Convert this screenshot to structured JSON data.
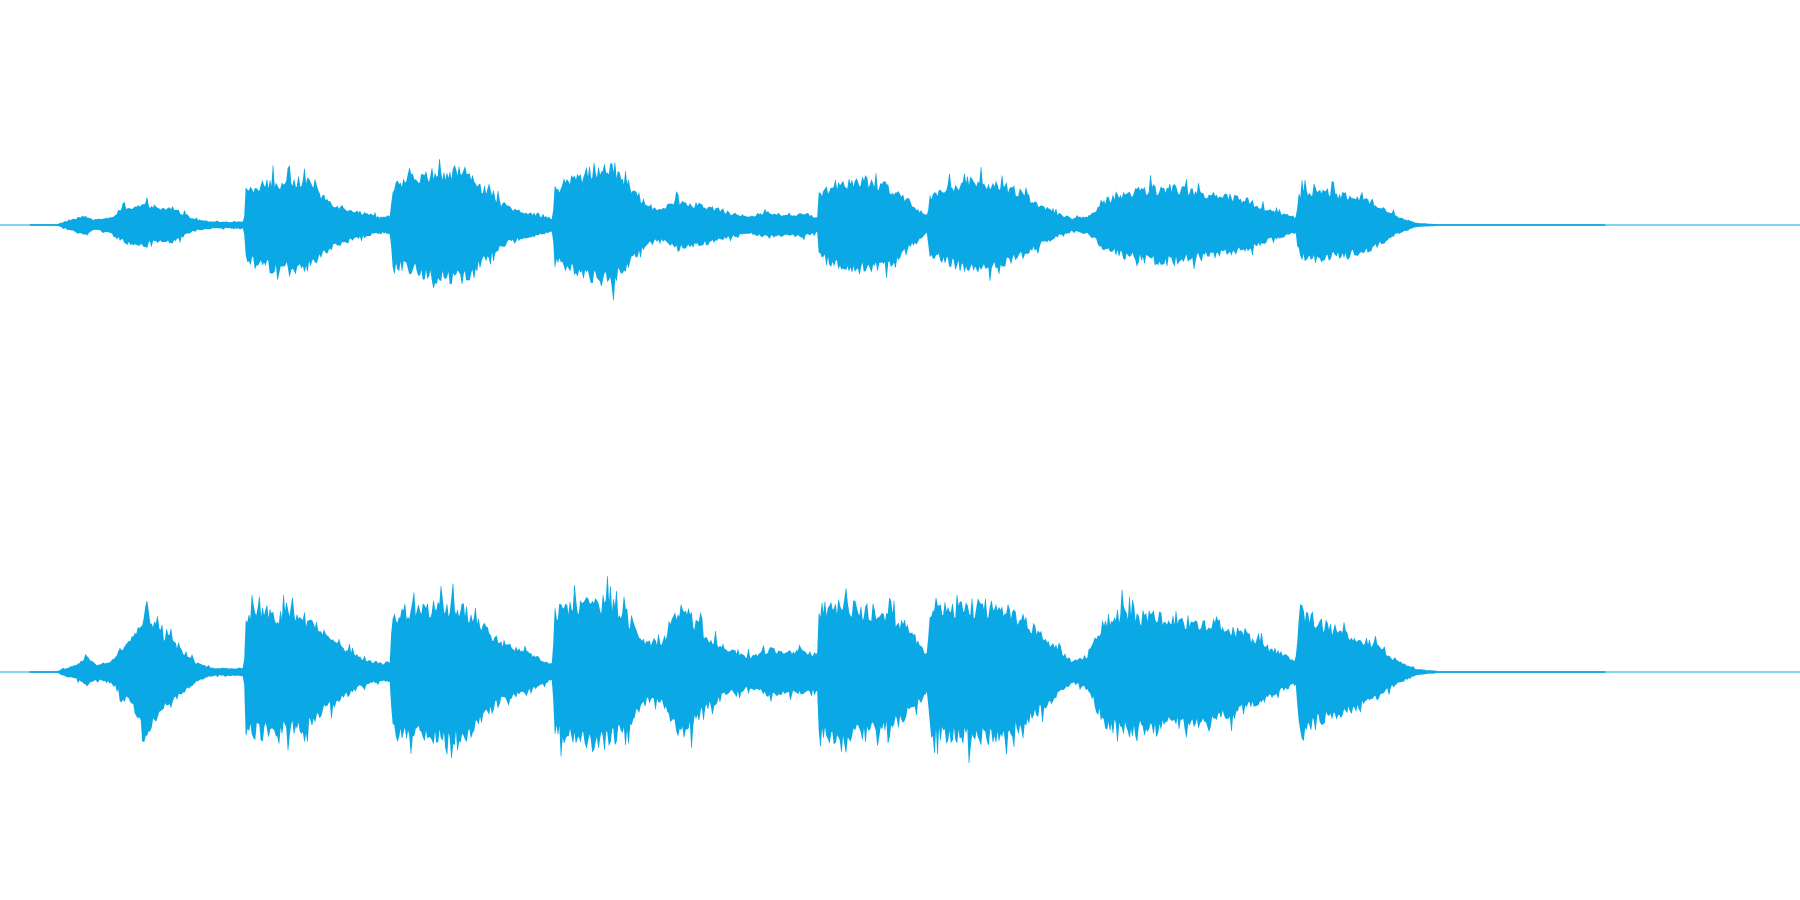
{
  "waveform": {
    "color": "#0aa8e4",
    "channel_count": 2,
    "channels": [
      {
        "name": "",
        "envelope": [
          [
            0.0,
            0.0
          ],
          [
            0.017,
            0.006
          ],
          [
            0.022,
            0.05
          ],
          [
            0.028,
            0.1
          ],
          [
            0.034,
            0.15
          ],
          [
            0.04,
            0.08
          ],
          [
            0.052,
            0.12
          ],
          [
            0.058,
            0.26
          ],
          [
            0.066,
            0.3
          ],
          [
            0.075,
            0.32
          ],
          [
            0.082,
            0.24
          ],
          [
            0.09,
            0.28
          ],
          [
            0.098,
            0.17
          ],
          [
            0.106,
            0.08
          ],
          [
            0.116,
            0.05
          ],
          [
            0.128,
            0.05
          ],
          [
            0.136,
            0.05
          ],
          [
            0.137,
            0.56
          ],
          [
            0.145,
            0.65
          ],
          [
            0.155,
            0.7
          ],
          [
            0.165,
            0.68
          ],
          [
            0.175,
            0.72
          ],
          [
            0.182,
            0.52
          ],
          [
            0.195,
            0.31
          ],
          [
            0.21,
            0.2
          ],
          [
            0.222,
            0.12
          ],
          [
            0.229,
            0.14
          ],
          [
            0.23,
            0.6
          ],
          [
            0.24,
            0.72
          ],
          [
            0.252,
            0.8
          ],
          [
            0.262,
            0.84
          ],
          [
            0.272,
            0.88
          ],
          [
            0.282,
            0.76
          ],
          [
            0.29,
            0.52
          ],
          [
            0.302,
            0.3
          ],
          [
            0.315,
            0.2
          ],
          [
            0.324,
            0.15
          ],
          [
            0.332,
            0.1
          ],
          [
            0.333,
            0.56
          ],
          [
            0.343,
            0.72
          ],
          [
            0.355,
            0.82
          ],
          [
            0.367,
            0.93
          ],
          [
            0.375,
            0.8
          ],
          [
            0.384,
            0.5
          ],
          [
            0.392,
            0.32
          ],
          [
            0.4,
            0.24
          ],
          [
            0.41,
            0.38
          ],
          [
            0.42,
            0.34
          ],
          [
            0.432,
            0.28
          ],
          [
            0.445,
            0.18
          ],
          [
            0.458,
            0.14
          ],
          [
            0.47,
            0.2
          ],
          [
            0.48,
            0.16
          ],
          [
            0.492,
            0.18
          ],
          [
            0.5,
            0.12
          ],
          [
            0.501,
            0.5
          ],
          [
            0.512,
            0.66
          ],
          [
            0.522,
            0.72
          ],
          [
            0.535,
            0.7
          ],
          [
            0.548,
            0.58
          ],
          [
            0.558,
            0.38
          ],
          [
            0.567,
            0.18
          ],
          [
            0.57,
            0.14
          ],
          [
            0.571,
            0.46
          ],
          [
            0.582,
            0.62
          ],
          [
            0.594,
            0.68
          ],
          [
            0.606,
            0.7
          ],
          [
            0.618,
            0.64
          ],
          [
            0.63,
            0.5
          ],
          [
            0.64,
            0.34
          ],
          [
            0.652,
            0.18
          ],
          [
            0.662,
            0.1
          ],
          [
            0.672,
            0.14
          ],
          [
            0.682,
            0.38
          ],
          [
            0.695,
            0.5
          ],
          [
            0.708,
            0.56
          ],
          [
            0.72,
            0.6
          ],
          [
            0.735,
            0.56
          ],
          [
            0.748,
            0.5
          ],
          [
            0.76,
            0.46
          ],
          [
            0.772,
            0.4
          ],
          [
            0.785,
            0.26
          ],
          [
            0.798,
            0.16
          ],
          [
            0.804,
            0.12
          ],
          [
            0.806,
            0.5
          ],
          [
            0.814,
            0.56
          ],
          [
            0.826,
            0.52
          ],
          [
            0.84,
            0.46
          ],
          [
            0.852,
            0.38
          ],
          [
            0.862,
            0.22
          ],
          [
            0.872,
            0.1
          ],
          [
            0.88,
            0.03
          ],
          [
            0.895,
            0.006
          ],
          [
            1.0,
            0.006
          ]
        ]
      },
      {
        "name": "",
        "envelope": [
          [
            0.0,
            0.0
          ],
          [
            0.017,
            0.006
          ],
          [
            0.022,
            0.05
          ],
          [
            0.03,
            0.1
          ],
          [
            0.036,
            0.2
          ],
          [
            0.042,
            0.1
          ],
          [
            0.052,
            0.15
          ],
          [
            0.058,
            0.32
          ],
          [
            0.066,
            0.52
          ],
          [
            0.075,
            0.88
          ],
          [
            0.082,
            0.56
          ],
          [
            0.09,
            0.46
          ],
          [
            0.098,
            0.27
          ],
          [
            0.106,
            0.12
          ],
          [
            0.116,
            0.05
          ],
          [
            0.128,
            0.05
          ],
          [
            0.136,
            0.05
          ],
          [
            0.137,
            0.8
          ],
          [
            0.145,
            0.88
          ],
          [
            0.155,
            0.82
          ],
          [
            0.165,
            0.82
          ],
          [
            0.175,
            0.76
          ],
          [
            0.182,
            0.62
          ],
          [
            0.195,
            0.41
          ],
          [
            0.21,
            0.2
          ],
          [
            0.222,
            0.12
          ],
          [
            0.229,
            0.14
          ],
          [
            0.23,
            0.82
          ],
          [
            0.24,
            0.88
          ],
          [
            0.252,
            0.9
          ],
          [
            0.262,
            0.92
          ],
          [
            0.272,
            0.94
          ],
          [
            0.282,
            0.8
          ],
          [
            0.29,
            0.58
          ],
          [
            0.302,
            0.38
          ],
          [
            0.315,
            0.3
          ],
          [
            0.324,
            0.18
          ],
          [
            0.332,
            0.1
          ],
          [
            0.333,
            0.82
          ],
          [
            0.343,
            0.92
          ],
          [
            0.355,
            1.0
          ],
          [
            0.367,
            0.98
          ],
          [
            0.375,
            0.88
          ],
          [
            0.384,
            0.62
          ],
          [
            0.392,
            0.42
          ],
          [
            0.4,
            0.38
          ],
          [
            0.413,
            0.88
          ],
          [
            0.42,
            0.76
          ],
          [
            0.432,
            0.46
          ],
          [
            0.445,
            0.3
          ],
          [
            0.458,
            0.22
          ],
          [
            0.47,
            0.32
          ],
          [
            0.48,
            0.28
          ],
          [
            0.492,
            0.3
          ],
          [
            0.5,
            0.24
          ],
          [
            0.501,
            0.86
          ],
          [
            0.512,
            0.92
          ],
          [
            0.522,
            0.9
          ],
          [
            0.535,
            0.86
          ],
          [
            0.548,
            0.76
          ],
          [
            0.558,
            0.58
          ],
          [
            0.567,
            0.34
          ],
          [
            0.57,
            0.22
          ],
          [
            0.571,
            0.82
          ],
          [
            0.582,
            0.9
          ],
          [
            0.594,
            0.92
          ],
          [
            0.606,
            0.94
          ],
          [
            0.618,
            0.9
          ],
          [
            0.63,
            0.76
          ],
          [
            0.64,
            0.56
          ],
          [
            0.652,
            0.34
          ],
          [
            0.662,
            0.14
          ],
          [
            0.672,
            0.24
          ],
          [
            0.682,
            0.72
          ],
          [
            0.695,
            0.84
          ],
          [
            0.708,
            0.8
          ],
          [
            0.72,
            0.76
          ],
          [
            0.735,
            0.72
          ],
          [
            0.748,
            0.68
          ],
          [
            0.76,
            0.62
          ],
          [
            0.772,
            0.52
          ],
          [
            0.785,
            0.36
          ],
          [
            0.798,
            0.22
          ],
          [
            0.804,
            0.16
          ],
          [
            0.806,
            0.86
          ],
          [
            0.814,
            0.76
          ],
          [
            0.826,
            0.62
          ],
          [
            0.84,
            0.52
          ],
          [
            0.852,
            0.4
          ],
          [
            0.862,
            0.24
          ],
          [
            0.872,
            0.12
          ],
          [
            0.88,
            0.04
          ],
          [
            0.895,
            0.006
          ],
          [
            1.0,
            0.006
          ]
        ]
      }
    ]
  }
}
